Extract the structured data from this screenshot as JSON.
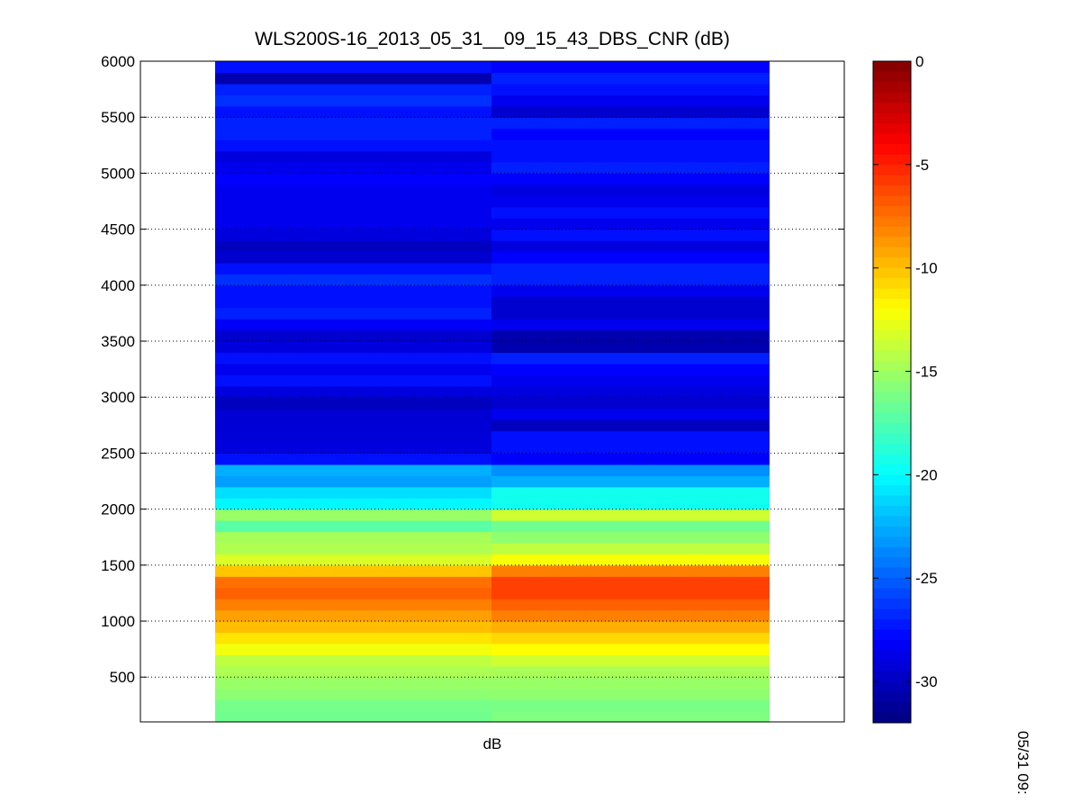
{
  "chart_data": {
    "type": "heatmap",
    "title": "WLS200S-16_2013_05_31__09_15_43_DBS_CNR (dB)",
    "xlabel": "dB",
    "ylabel": "",
    "side_label": "05/31 09:",
    "ylim": [
      100,
      6000
    ],
    "yticks": [
      500,
      1000,
      1500,
      2000,
      2500,
      3000,
      3500,
      4000,
      4500,
      5000,
      5500,
      6000
    ],
    "grid": "horizontal dotted",
    "colormap": "jet",
    "colorbar": {
      "range": [
        -32,
        0
      ],
      "ticks": [
        -30,
        -25,
        -20,
        -15,
        -10,
        -5,
        0
      ],
      "placement": "right"
    },
    "y_bins": [
      150,
      250,
      350,
      450,
      550,
      650,
      750,
      850,
      950,
      1050,
      1150,
      1250,
      1350,
      1450,
      1550,
      1650,
      1750,
      1850,
      1950,
      2050,
      2150,
      2250,
      2350,
      2450,
      2550,
      2650,
      2750,
      2850,
      2950,
      3050,
      3150,
      3250,
      3350,
      3450,
      3550,
      3650,
      3750,
      3850,
      3950,
      4050,
      4150,
      4250,
      4350,
      4450,
      4550,
      4650,
      4750,
      4850,
      4950,
      5050,
      5150,
      5250,
      5350,
      5450,
      5550,
      5650,
      5750,
      5850,
      5950
    ],
    "columns": [
      {
        "values": [
          -16.5,
          -16.3,
          -15.6,
          -15.2,
          -14.6,
          -14.0,
          -12.4,
          -11.2,
          -10.0,
          -9.0,
          -8.0,
          -7.0,
          -7.5,
          -10.2,
          -13.2,
          -14.5,
          -14.8,
          -17.2,
          -15.2,
          -20.2,
          -21.0,
          -23.0,
          -22.5,
          -27.5,
          -29.0,
          -29.2,
          -29.3,
          -29.4,
          -30.0,
          -29.0,
          -27.5,
          -28.5,
          -27.5,
          -29.0,
          -29.5,
          -28.2,
          -27.0,
          -27.5,
          -27.5,
          -26.5,
          -27.5,
          -29.5,
          -30.0,
          -29.0,
          -28.5,
          -28.5,
          -28.5,
          -28.5,
          -28.0,
          -28.5,
          -29.0,
          -27.5,
          -27.0,
          -27.0,
          -27.5,
          -26.5,
          -27.0,
          -30.5,
          -27.5
        ]
      },
      {
        "values": [
          -16.0,
          -16.2,
          -15.5,
          -15.2,
          -14.7,
          -13.5,
          -12.0,
          -10.8,
          -9.5,
          -8.0,
          -7.0,
          -6.0,
          -6.0,
          -8.0,
          -12.2,
          -14.0,
          -15.5,
          -16.5,
          -13.5,
          -19.5,
          -19.5,
          -22.5,
          -23.5,
          -28.0,
          -27.5,
          -27.5,
          -30.0,
          -28.5,
          -29.5,
          -29.0,
          -28.5,
          -28.0,
          -27.0,
          -30.5,
          -30.5,
          -28.5,
          -29.5,
          -29.5,
          -28.5,
          -27.0,
          -27.0,
          -28.0,
          -29.0,
          -27.5,
          -28.5,
          -27.5,
          -28.5,
          -29.0,
          -28.0,
          -27.0,
          -27.5,
          -27.5,
          -28.0,
          -27.0,
          -29.5,
          -28.5,
          -27.5,
          -27.0,
          -28.0
        ]
      }
    ]
  }
}
